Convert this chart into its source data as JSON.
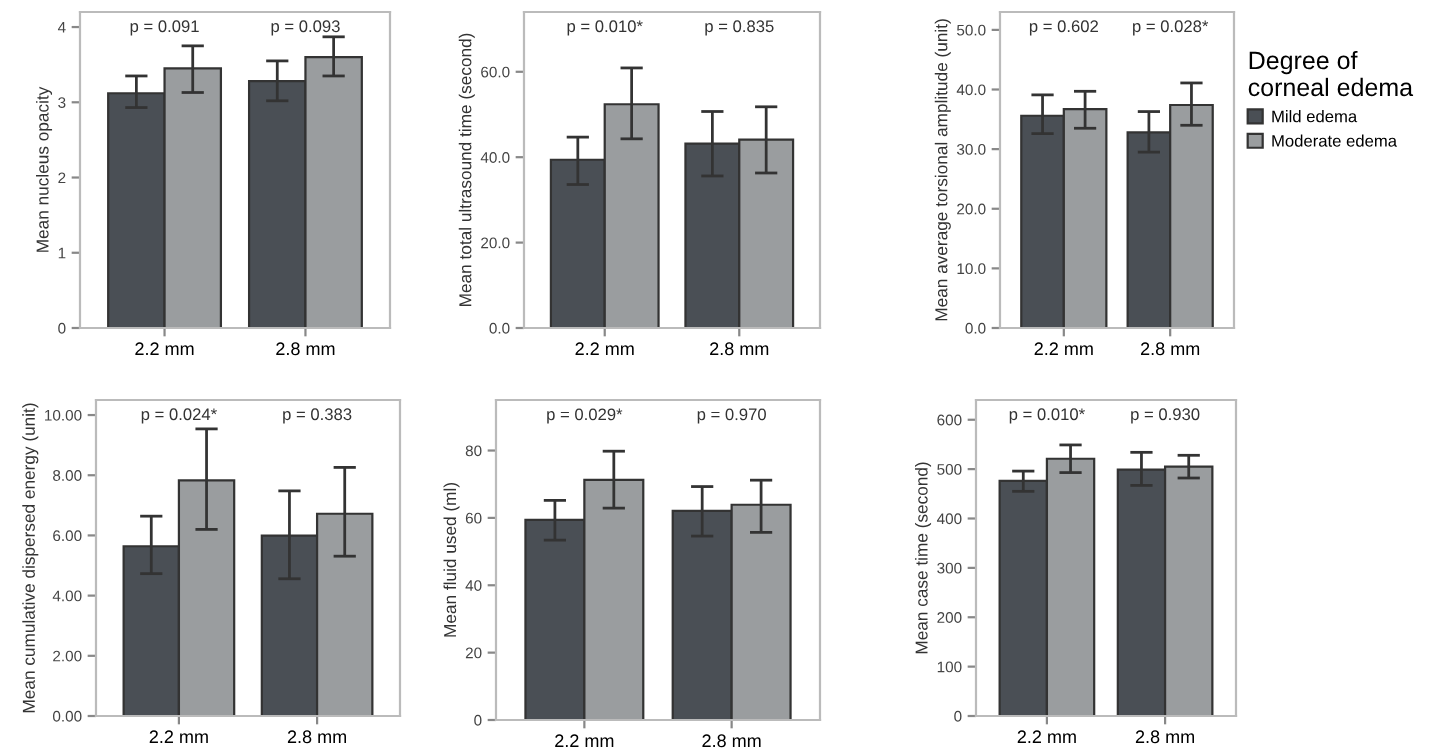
{
  "chart_data": [
    {
      "type": "bar",
      "categories": [
        "2.2 mm",
        "2.8 mm"
      ],
      "ylabel": "Mean nucleus opacity",
      "ylim": [
        0,
        4.2
      ],
      "yticks": [
        0,
        1,
        2,
        3,
        4
      ],
      "grid": false,
      "annotations": [
        "p = 0.091",
        "p = 0.093"
      ],
      "series": [
        {
          "color": "#4a4f55",
          "values": [
            3.12,
            3.28
          ],
          "errors": [
            [
              2.93,
              3.35
            ],
            [
              3.02,
              3.55
            ]
          ]
        },
        {
          "color": "#9a9d9f",
          "values": [
            3.45,
            3.6
          ],
          "errors": [
            [
              3.13,
              3.75
            ],
            [
              3.35,
              3.87
            ]
          ]
        }
      ]
    },
    {
      "type": "bar",
      "categories": [
        "2.2 mm",
        "2.8 mm"
      ],
      "ylabel": "Mean total ultrasound time (second)",
      "ylim": [
        0,
        74
      ],
      "yticks": [
        {
          "value": 0,
          "label": "0.0"
        },
        {
          "value": 20,
          "label": "20.0"
        },
        {
          "value": 40,
          "label": "40.0"
        },
        {
          "value": 60,
          "label": "60.0"
        }
      ],
      "grid": false,
      "annotations": [
        "p = 0.010*",
        "p = 0.835"
      ],
      "series": [
        {
          "color": "#4a4f55",
          "values": [
            39.4,
            43.2
          ],
          "errors": [
            [
              33.6,
              44.7
            ],
            [
              35.6,
              50.7
            ]
          ]
        },
        {
          "color": "#9a9d9f",
          "values": [
            52.4,
            44.1
          ],
          "errors": [
            [
              44.3,
              60.9
            ],
            [
              36.3,
              51.8
            ]
          ]
        }
      ]
    },
    {
      "type": "bar",
      "categories": [
        "2.2 mm",
        "2.8 mm"
      ],
      "ylabel": "Mean average torsional amplitude (unit)",
      "ylim": [
        0,
        53
      ],
      "yticks": [
        {
          "value": 0,
          "label": "0.0"
        },
        {
          "value": 10,
          "label": "10.0"
        },
        {
          "value": 20,
          "label": "20.0"
        },
        {
          "value": 30,
          "label": "30.0"
        },
        {
          "value": 40,
          "label": "40.0"
        },
        {
          "value": 50,
          "label": "50.0"
        }
      ],
      "grid": false,
      "annotations": [
        "p = 0.602",
        "p = 0.028*"
      ],
      "legend": "right",
      "legend_title": "Degree of\ncorneal edema",
      "series": [
        {
          "name": "Mild edema",
          "color": "#4a4f55",
          "values": [
            35.6,
            32.8
          ],
          "errors": [
            [
              32.6,
              39.1
            ],
            [
              29.5,
              36.3
            ]
          ]
        },
        {
          "name": "Moderate edema",
          "color": "#9a9d9f",
          "values": [
            36.7,
            37.4
          ],
          "errors": [
            [
              33.5,
              39.7
            ],
            [
              34.0,
              41.1
            ]
          ]
        }
      ]
    },
    {
      "type": "bar",
      "categories": [
        "2.2 mm",
        "2.8 mm"
      ],
      "ylabel": "Mean cumulative dispersed energy (unit)",
      "ylim": [
        0,
        10.5
      ],
      "yticks": [
        {
          "value": 0,
          "label": "0.00"
        },
        {
          "value": 2,
          "label": "2.00"
        },
        {
          "value": 4,
          "label": "4.00"
        },
        {
          "value": 6,
          "label": "6.00"
        },
        {
          "value": 8,
          "label": "8.00"
        },
        {
          "value": 10,
          "label": "10.00"
        }
      ],
      "grid": false,
      "annotations": [
        "p = 0.024*",
        "p = 0.383"
      ],
      "series": [
        {
          "color": "#4a4f55",
          "values": [
            5.64,
            5.99
          ],
          "errors": [
            [
              4.73,
              6.64
            ],
            [
              4.56,
              7.48
            ]
          ]
        },
        {
          "color": "#9a9d9f",
          "values": [
            7.83,
            6.72
          ],
          "errors": [
            [
              6.2,
              9.54
            ],
            [
              5.31,
              8.26
            ]
          ]
        }
      ]
    },
    {
      "type": "bar",
      "categories": [
        "2.2 mm",
        "2.8 mm"
      ],
      "ylabel": "Mean fluid used (ml)",
      "ylim": [
        0,
        95
      ],
      "yticks": [
        0,
        20,
        40,
        60,
        80
      ],
      "grid": false,
      "annotations": [
        "p = 0.029*",
        "p = 0.970"
      ],
      "series": [
        {
          "color": "#4a4f55",
          "values": [
            59.4,
            62.1
          ],
          "errors": [
            [
              53.4,
              65.2
            ],
            [
              54.6,
              69.3
            ]
          ]
        },
        {
          "color": "#9a9d9f",
          "values": [
            71.3,
            63.9
          ],
          "errors": [
            [
              62.9,
              79.8
            ],
            [
              55.7,
              71.2
            ]
          ]
        }
      ]
    },
    {
      "type": "bar",
      "categories": [
        "2.2 mm",
        "2.8 mm"
      ],
      "ylabel": "Mean case time (second)",
      "ylim": [
        0,
        640
      ],
      "yticks": [
        0,
        100,
        200,
        300,
        400,
        500,
        600
      ],
      "grid": false,
      "annotations": [
        "p = 0.010*",
        "p = 0.930"
      ],
      "series": [
        {
          "color": "#4a4f55",
          "values": [
            476,
            499
          ],
          "errors": [
            [
              455,
              496
            ],
            [
              467,
              534
            ]
          ]
        },
        {
          "color": "#9a9d9f",
          "values": [
            521,
            505
          ],
          "errors": [
            [
              493,
              549
            ],
            [
              482,
              528
            ]
          ]
        }
      ]
    }
  ]
}
